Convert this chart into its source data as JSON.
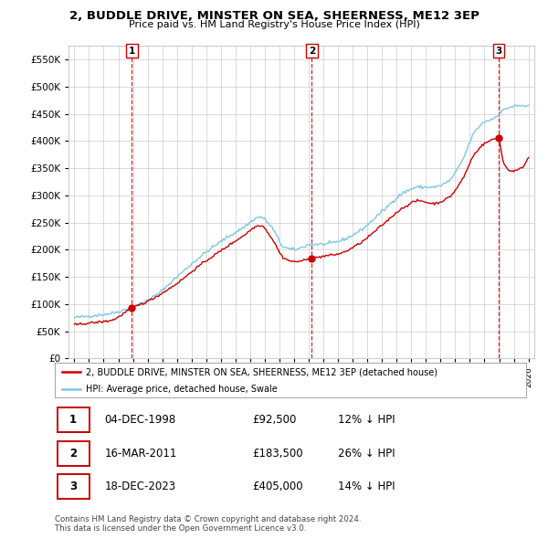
{
  "title": "2, BUDDLE DRIVE, MINSTER ON SEA, SHEERNESS, ME12 3EP",
  "subtitle": "Price paid vs. HM Land Registry's House Price Index (HPI)",
  "ylim": [
    0,
    575000
  ],
  "yticks": [
    0,
    50000,
    100000,
    150000,
    200000,
    250000,
    300000,
    350000,
    400000,
    450000,
    500000,
    550000
  ],
  "sale_prices": [
    92500,
    183500,
    405000
  ],
  "sale_labels": [
    "1",
    "2",
    "3"
  ],
  "sale_date_floats": [
    1998.92,
    2011.21,
    2023.96
  ],
  "sale_info": [
    {
      "num": "1",
      "date": "04-DEC-1998",
      "price": "£92,500",
      "hpi": "12% ↓ HPI"
    },
    {
      "num": "2",
      "date": "16-MAR-2011",
      "price": "£183,500",
      "hpi": "26% ↓ HPI"
    },
    {
      "num": "3",
      "date": "18-DEC-2023",
      "price": "£405,000",
      "hpi": "14% ↓ HPI"
    }
  ],
  "legend_line1": "2, BUDDLE DRIVE, MINSTER ON SEA, SHEERNESS, ME12 3EP (detached house)",
  "legend_line2": "HPI: Average price, detached house, Swale",
  "footer": "Contains HM Land Registry data © Crown copyright and database right 2024.\nThis data is licensed under the Open Government Licence v3.0.",
  "hpi_color": "#7ec8e3",
  "price_color": "#cc0000",
  "vline_color": "#cc0000",
  "background_color": "#ffffff",
  "grid_color": "#cccccc",
  "xlim": [
    1994.6,
    2026.4
  ],
  "xtick_start": 1995,
  "xtick_end": 2026
}
